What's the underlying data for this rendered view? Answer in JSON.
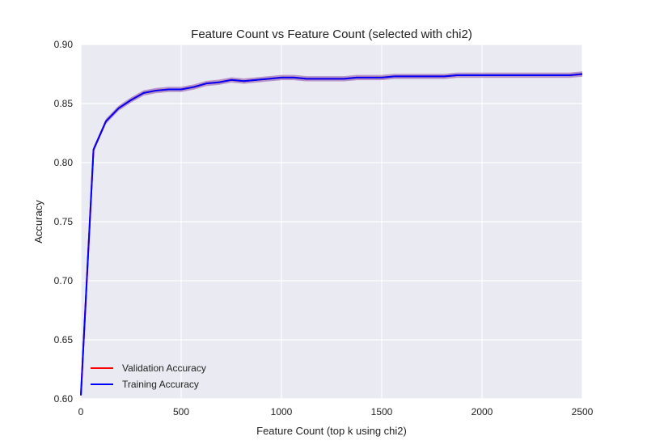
{
  "chart_data": {
    "type": "line",
    "title": "Feature Count vs Feature Count (selected with chi2)",
    "xlabel": "Feature Count (top k using chi2)",
    "ylabel": "Accuracy",
    "xlim": [
      0,
      2500
    ],
    "ylim": [
      0.6,
      0.9
    ],
    "xticks": [
      0,
      500,
      1000,
      1500,
      2000,
      2500
    ],
    "yticks": [
      0.6,
      0.65,
      0.7,
      0.75,
      0.8,
      0.85,
      0.9
    ],
    "xtick_labels": [
      "0",
      "500",
      "1000",
      "1500",
      "2000",
      "2500"
    ],
    "ytick_labels": [
      "0.60",
      "0.65",
      "0.70",
      "0.75",
      "0.80",
      "0.85",
      "0.90"
    ],
    "grid": true,
    "legend_position": "lower-left",
    "x": [
      0,
      63,
      125,
      188,
      250,
      313,
      375,
      438,
      500,
      563,
      625,
      688,
      750,
      813,
      875,
      938,
      1000,
      1063,
      1125,
      1188,
      1250,
      1313,
      1375,
      1438,
      1500,
      1563,
      1625,
      1688,
      1750,
      1813,
      1875,
      1938,
      2000,
      2063,
      2125,
      2188,
      2250,
      2313,
      2375,
      2438,
      2500
    ],
    "series": [
      {
        "name": "Validation Accuracy",
        "color": "#ff0000",
        "values": [
          0.603,
          0.811,
          0.835,
          0.846,
          0.853,
          0.859,
          0.861,
          0.862,
          0.862,
          0.864,
          0.867,
          0.868,
          0.87,
          0.869,
          0.87,
          0.871,
          0.872,
          0.872,
          0.871,
          0.871,
          0.871,
          0.871,
          0.872,
          0.872,
          0.872,
          0.873,
          0.873,
          0.873,
          0.873,
          0.873,
          0.874,
          0.874,
          0.874,
          0.874,
          0.874,
          0.874,
          0.874,
          0.874,
          0.874,
          0.874,
          0.875
        ]
      },
      {
        "name": "Training Accuracy",
        "color": "#0000ff",
        "values": [
          0.603,
          0.811,
          0.835,
          0.846,
          0.853,
          0.859,
          0.861,
          0.862,
          0.862,
          0.864,
          0.867,
          0.868,
          0.87,
          0.869,
          0.87,
          0.871,
          0.872,
          0.872,
          0.871,
          0.871,
          0.871,
          0.871,
          0.872,
          0.872,
          0.872,
          0.873,
          0.873,
          0.873,
          0.873,
          0.873,
          0.874,
          0.874,
          0.874,
          0.874,
          0.874,
          0.874,
          0.874,
          0.874,
          0.874,
          0.874,
          0.875
        ]
      }
    ],
    "band_color": "#a070b8",
    "band_halfwidth": 0.0022
  }
}
